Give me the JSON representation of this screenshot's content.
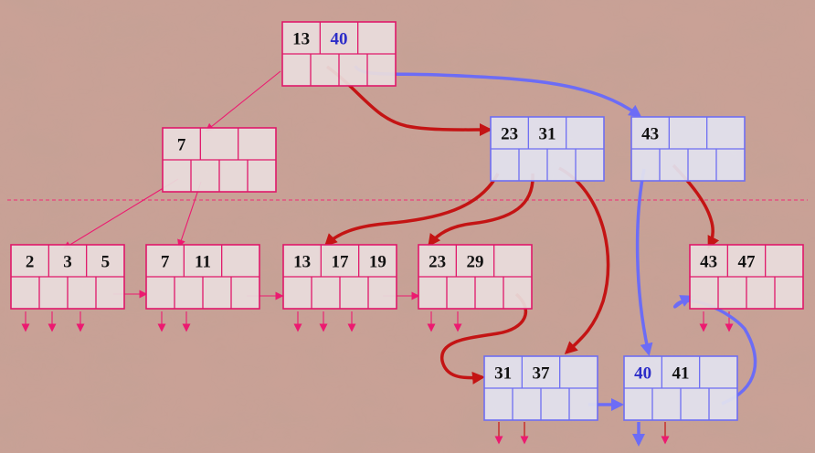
{
  "colors": {
    "background_base": "#c9a196",
    "background_texture": "#a07866",
    "node_pink_stroke": "#e0186a",
    "node_pink_fill": "#e9dddc",
    "node_blue_stroke": "#6e6ef2",
    "node_blue_fill": "#e2e2ee",
    "key_text": "#111111",
    "key_blue_text": "#2d2dc8",
    "arrow_red": "#c41414",
    "arrow_blue": "#6c6cf6",
    "arrow_pink": "#ec1a70",
    "divider": "#e8447c"
  },
  "nodes": [
    {
      "id": "root",
      "keys": [
        "13",
        "40"
      ],
      "key_styles": [
        "normal",
        "blue"
      ],
      "color": "pink"
    },
    {
      "id": "inner-left",
      "keys": [
        "7"
      ],
      "key_styles": [
        "normal"
      ],
      "color": "pink"
    },
    {
      "id": "inner-mid",
      "keys": [
        "23",
        "31"
      ],
      "key_styles": [
        "normal",
        "normal"
      ],
      "color": "blue"
    },
    {
      "id": "inner-right",
      "keys": [
        "43"
      ],
      "key_styles": [
        "normal"
      ],
      "color": "blue"
    },
    {
      "id": "leaf-1",
      "keys": [
        "2",
        "3",
        "5"
      ],
      "key_styles": [
        "normal",
        "normal",
        "normal"
      ],
      "color": "pink"
    },
    {
      "id": "leaf-2",
      "keys": [
        "7",
        "11"
      ],
      "key_styles": [
        "normal",
        "normal"
      ],
      "color": "pink"
    },
    {
      "id": "leaf-3",
      "keys": [
        "13",
        "17",
        "19"
      ],
      "key_styles": [
        "normal",
        "normal",
        "normal"
      ],
      "color": "pink"
    },
    {
      "id": "leaf-4",
      "keys": [
        "23",
        "29"
      ],
      "key_styles": [
        "normal",
        "normal"
      ],
      "color": "pink"
    },
    {
      "id": "leaf-5",
      "keys": [
        "43",
        "47"
      ],
      "key_styles": [
        "normal",
        "normal"
      ],
      "color": "pink"
    },
    {
      "id": "leaf-6",
      "keys": [
        "31",
        "37"
      ],
      "key_styles": [
        "normal",
        "normal"
      ],
      "color": "blue"
    },
    {
      "id": "leaf-7",
      "keys": [
        "40",
        "41"
      ],
      "key_styles": [
        "blue",
        "normal"
      ],
      "color": "blue"
    }
  ]
}
